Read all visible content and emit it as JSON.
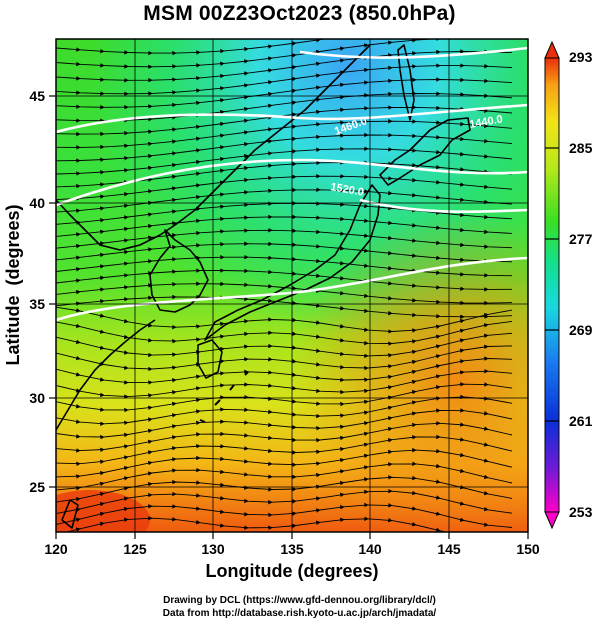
{
  "title": "MSM 00Z23Oct2023 (850.0hPa)",
  "map": {
    "xlabel": "Longitude (degrees)",
    "ylabel": "Latitude  (degrees)",
    "x_ticks": [
      "120",
      "125",
      "130",
      "135",
      "140",
      "145",
      "150"
    ],
    "y_ticks": [
      "25",
      "30",
      "35",
      "40",
      "45"
    ],
    "x_range": [
      120,
      150
    ],
    "y_range": [
      22.4,
      47.6
    ],
    "contour_labels": [
      "1460.0",
      "1520.0",
      "1440.0"
    ]
  },
  "colorbar": {
    "ticks": [
      "293",
      "285",
      "277",
      "269",
      "261",
      "253"
    ],
    "range": [
      253,
      293
    ],
    "colors": [
      "#ff00c8",
      "#6b1bd6",
      "#0a2fd8",
      "#1a7bf0",
      "#19d8e0",
      "#13e08b",
      "#3adf24",
      "#b9e81a",
      "#f2e316",
      "#f7a114",
      "#ea2f0c"
    ]
  },
  "credits": {
    "line1": "Drawing by DCL (https://www.gfd-dennou.org/library/dcl/)",
    "line2": "Data from http://database.rish.kyoto-u.ac.jp/arch/jmadata/"
  }
}
